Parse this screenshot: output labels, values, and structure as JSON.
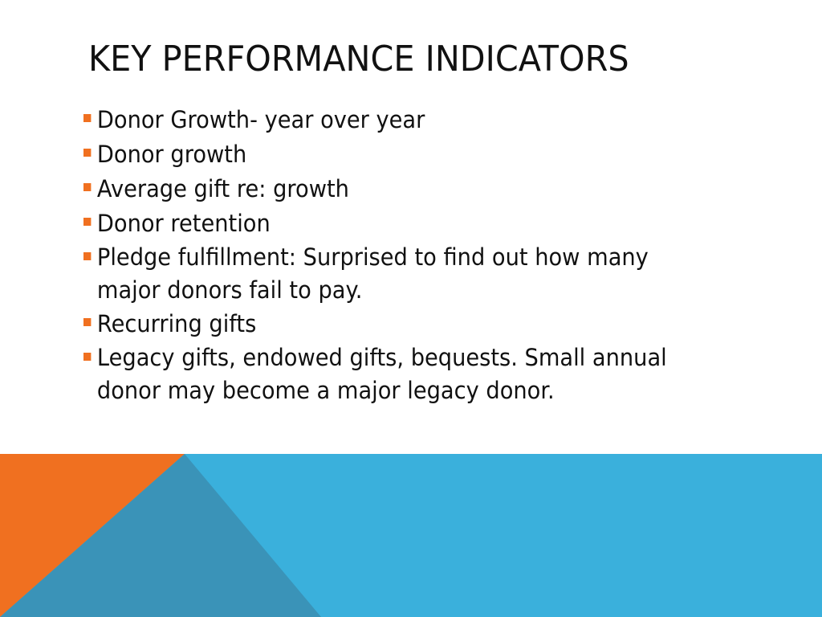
{
  "slide": {
    "title": "KEY PERFORMANCE INDICATORS",
    "bullets": [
      "Donor Growth- year over year",
      "Donor growth",
      "Average gift re: growth",
      "Donor retention",
      "Pledge fulfillment: Surprised to find out how many major donors fail to pay.",
      "Recurring gifts",
      "Legacy gifts, endowed gifts, bequests. Small annual donor may become a major legacy donor."
    ]
  },
  "colors": {
    "accent_orange": "#f07020",
    "band_blue": "#3ab0dc",
    "triangle_teal": "#3a93b8",
    "text": "#111111"
  }
}
